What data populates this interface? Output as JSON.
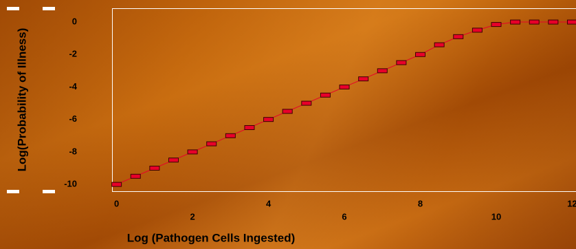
{
  "chart_data": {
    "type": "line",
    "x_label": "Log (Pathogen Cells Ingested)",
    "y_label": "Log(Probability of Illness)",
    "x": [
      0,
      0.5,
      1,
      1.5,
      2,
      2.5,
      3,
      3.5,
      4,
      4.5,
      5,
      5.5,
      6,
      6.5,
      7,
      7.5,
      8,
      8.5,
      9,
      9.5,
      10,
      10.5,
      11,
      11.5,
      12
    ],
    "series": [
      {
        "color": "#e8002a",
        "values": [
          -10,
          -9.5,
          -9,
          -8.5,
          -8,
          -7.5,
          -7,
          -6.5,
          -6,
          -5.5,
          -5,
          -4.5,
          -4,
          -3.5,
          -3,
          -2.5,
          -2,
          -1.4,
          -0.9,
          -0.5,
          -0.15,
          0,
          0,
          0,
          0
        ]
      }
    ],
    "xlim": [
      -0.12,
      12.1
    ],
    "ylim": [
      -10.42,
      0.85
    ],
    "xticks": [
      0,
      2,
      4,
      6,
      8,
      10,
      12
    ],
    "yticks": [
      0,
      -2,
      -4,
      -6,
      -8,
      -10
    ]
  }
}
